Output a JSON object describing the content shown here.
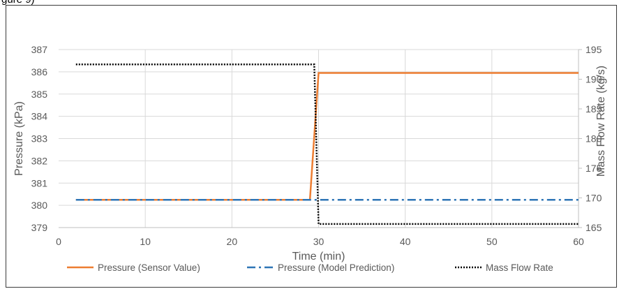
{
  "caption_fragment": "gure 9)",
  "chart_data": {
    "type": "line",
    "title": "",
    "xlabel": "Time (min)",
    "ylabel": "Pressure (kPa)",
    "y2label": "Mass Flow Rate (kg/s)",
    "xlim": [
      0,
      60
    ],
    "ylim": [
      379,
      387
    ],
    "y2lim": [
      165,
      195
    ],
    "xticks": [
      "0",
      "10",
      "20",
      "30",
      "40",
      "50",
      "60"
    ],
    "yticks": [
      "379",
      "380",
      "381",
      "382",
      "383",
      "384",
      "385",
      "386",
      "387"
    ],
    "y2ticks": [
      "165",
      "170",
      "175",
      "180",
      "185",
      "190",
      "195"
    ],
    "grid": true,
    "legend_position": "bottom",
    "series": [
      {
        "name": "Pressure (Sensor Value)",
        "axis": "left",
        "style": "solid",
        "color": "#ED7D31",
        "x": [
          2,
          29,
          30,
          60
        ],
        "y": [
          380.25,
          380.25,
          385.95,
          385.95
        ]
      },
      {
        "name": "Pressure (Model Prediction)",
        "axis": "left",
        "style": "dashdot",
        "color": "#2E75B6",
        "x": [
          2,
          60
        ],
        "y": [
          380.25,
          380.25
        ]
      },
      {
        "name": "Mass Flow Rate",
        "axis": "right",
        "style": "dotted",
        "color": "#000000",
        "x": [
          2,
          29.5,
          30,
          60
        ],
        "y": [
          192.5,
          192.5,
          165.6,
          165.6
        ]
      }
    ]
  }
}
